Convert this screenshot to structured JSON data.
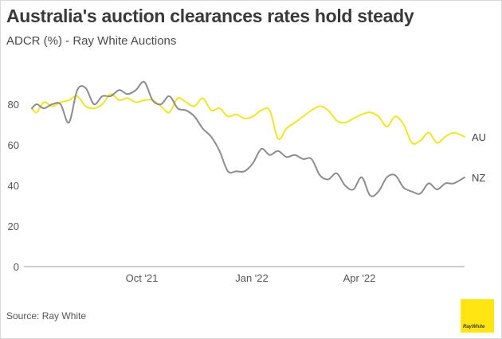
{
  "header": {
    "title": "Australia's auction clearances rates hold steady",
    "subtitle": "ADCR (%) - Ray White Auctions"
  },
  "footer": {
    "source": "Source: Ray White",
    "logo_text": "RayWhite"
  },
  "colors": {
    "au": "#f2e526",
    "nz": "#8c8c8c",
    "axis": "#999999",
    "text": "#555555",
    "logo_bg": "#ffe512"
  },
  "chart_data": {
    "type": "line",
    "title": "Australia's auction clearances rates hold steady",
    "subtitle": "ADCR (%) - Ray White Auctions",
    "xlabel": "",
    "ylabel": "",
    "ylim": [
      0,
      100
    ],
    "yticks": [
      0,
      20,
      40,
      60,
      80
    ],
    "xlim": [
      "2021-07-01",
      "2022-06-28"
    ],
    "xticks": [
      {
        "label": "Oct '21",
        "date": "2021-10-01"
      },
      {
        "label": "Jan '22",
        "date": "2022-01-01"
      },
      {
        "label": "Apr '22",
        "date": "2022-04-01"
      }
    ],
    "grid": false,
    "legend": "end-of-line labels",
    "series": [
      {
        "name": "AU",
        "color": "#f2e526",
        "points": [
          [
            "2021-07-01",
            78
          ],
          [
            "2021-07-05",
            76
          ],
          [
            "2021-07-11",
            81
          ],
          [
            "2021-07-18",
            79
          ],
          [
            "2021-07-25",
            81
          ],
          [
            "2021-08-01",
            82
          ],
          [
            "2021-08-08",
            84
          ],
          [
            "2021-08-15",
            79
          ],
          [
            "2021-08-22",
            78
          ],
          [
            "2021-08-29",
            80
          ],
          [
            "2021-09-05",
            85
          ],
          [
            "2021-09-12",
            82
          ],
          [
            "2021-09-19",
            83
          ],
          [
            "2021-09-26",
            81
          ],
          [
            "2021-10-03",
            82
          ],
          [
            "2021-10-10",
            82
          ],
          [
            "2021-10-17",
            79
          ],
          [
            "2021-10-24",
            76
          ],
          [
            "2021-10-31",
            83
          ],
          [
            "2021-11-07",
            81
          ],
          [
            "2021-11-14",
            79
          ],
          [
            "2021-11-21",
            83
          ],
          [
            "2021-11-28",
            77
          ],
          [
            "2021-12-05",
            78
          ],
          [
            "2021-12-12",
            74
          ],
          [
            "2021-12-19",
            75
          ],
          [
            "2021-12-26",
            73
          ],
          [
            "2022-01-02",
            74
          ],
          [
            "2022-01-09",
            77
          ],
          [
            "2022-01-16",
            77
          ],
          [
            "2022-01-23",
            63
          ],
          [
            "2022-01-30",
            68
          ],
          [
            "2022-02-06",
            71
          ],
          [
            "2022-02-13",
            74
          ],
          [
            "2022-02-20",
            77
          ],
          [
            "2022-02-27",
            79
          ],
          [
            "2022-03-06",
            77
          ],
          [
            "2022-03-13",
            72
          ],
          [
            "2022-03-20",
            71
          ],
          [
            "2022-03-27",
            73
          ],
          [
            "2022-04-03",
            75
          ],
          [
            "2022-04-10",
            76
          ],
          [
            "2022-04-17",
            74
          ],
          [
            "2022-04-24",
            69
          ],
          [
            "2022-05-01",
            74
          ],
          [
            "2022-05-08",
            70
          ],
          [
            "2022-05-15",
            61
          ],
          [
            "2022-05-22",
            62
          ],
          [
            "2022-05-29",
            66
          ],
          [
            "2022-06-05",
            61
          ],
          [
            "2022-06-12",
            64
          ],
          [
            "2022-06-19",
            66
          ],
          [
            "2022-06-28",
            64
          ]
        ]
      },
      {
        "name": "NZ",
        "color": "#8c8c8c",
        "points": [
          [
            "2021-07-01",
            78
          ],
          [
            "2021-07-05",
            80
          ],
          [
            "2021-07-11",
            78
          ],
          [
            "2021-07-18",
            80
          ],
          [
            "2021-07-25",
            80
          ],
          [
            "2021-08-01",
            71
          ],
          [
            "2021-08-08",
            87
          ],
          [
            "2021-08-15",
            88
          ],
          [
            "2021-08-22",
            80
          ],
          [
            "2021-08-29",
            84
          ],
          [
            "2021-09-05",
            84
          ],
          [
            "2021-09-12",
            87
          ],
          [
            "2021-09-19",
            85
          ],
          [
            "2021-09-26",
            87
          ],
          [
            "2021-10-03",
            91
          ],
          [
            "2021-10-10",
            82
          ],
          [
            "2021-10-17",
            80
          ],
          [
            "2021-10-24",
            84
          ],
          [
            "2021-10-31",
            78
          ],
          [
            "2021-11-07",
            77
          ],
          [
            "2021-11-14",
            74
          ],
          [
            "2021-11-21",
            68
          ],
          [
            "2021-11-28",
            64
          ],
          [
            "2021-12-05",
            57
          ],
          [
            "2021-12-12",
            47
          ],
          [
            "2021-12-19",
            47
          ],
          [
            "2021-12-26",
            47
          ],
          [
            "2022-01-02",
            51
          ],
          [
            "2022-01-09",
            58
          ],
          [
            "2022-01-16",
            55
          ],
          [
            "2022-01-23",
            57
          ],
          [
            "2022-01-30",
            54
          ],
          [
            "2022-02-06",
            55
          ],
          [
            "2022-02-13",
            53
          ],
          [
            "2022-02-20",
            53
          ],
          [
            "2022-02-27",
            45
          ],
          [
            "2022-03-06",
            43
          ],
          [
            "2022-03-13",
            46
          ],
          [
            "2022-03-20",
            40
          ],
          [
            "2022-03-27",
            38
          ],
          [
            "2022-04-03",
            44
          ],
          [
            "2022-04-10",
            35
          ],
          [
            "2022-04-17",
            37
          ],
          [
            "2022-04-24",
            44
          ],
          [
            "2022-05-01",
            45
          ],
          [
            "2022-05-08",
            39
          ],
          [
            "2022-05-15",
            37
          ],
          [
            "2022-05-22",
            36
          ],
          [
            "2022-05-29",
            41
          ],
          [
            "2022-06-05",
            38
          ],
          [
            "2022-06-12",
            41
          ],
          [
            "2022-06-19",
            41
          ],
          [
            "2022-06-28",
            44
          ]
        ]
      }
    ]
  }
}
